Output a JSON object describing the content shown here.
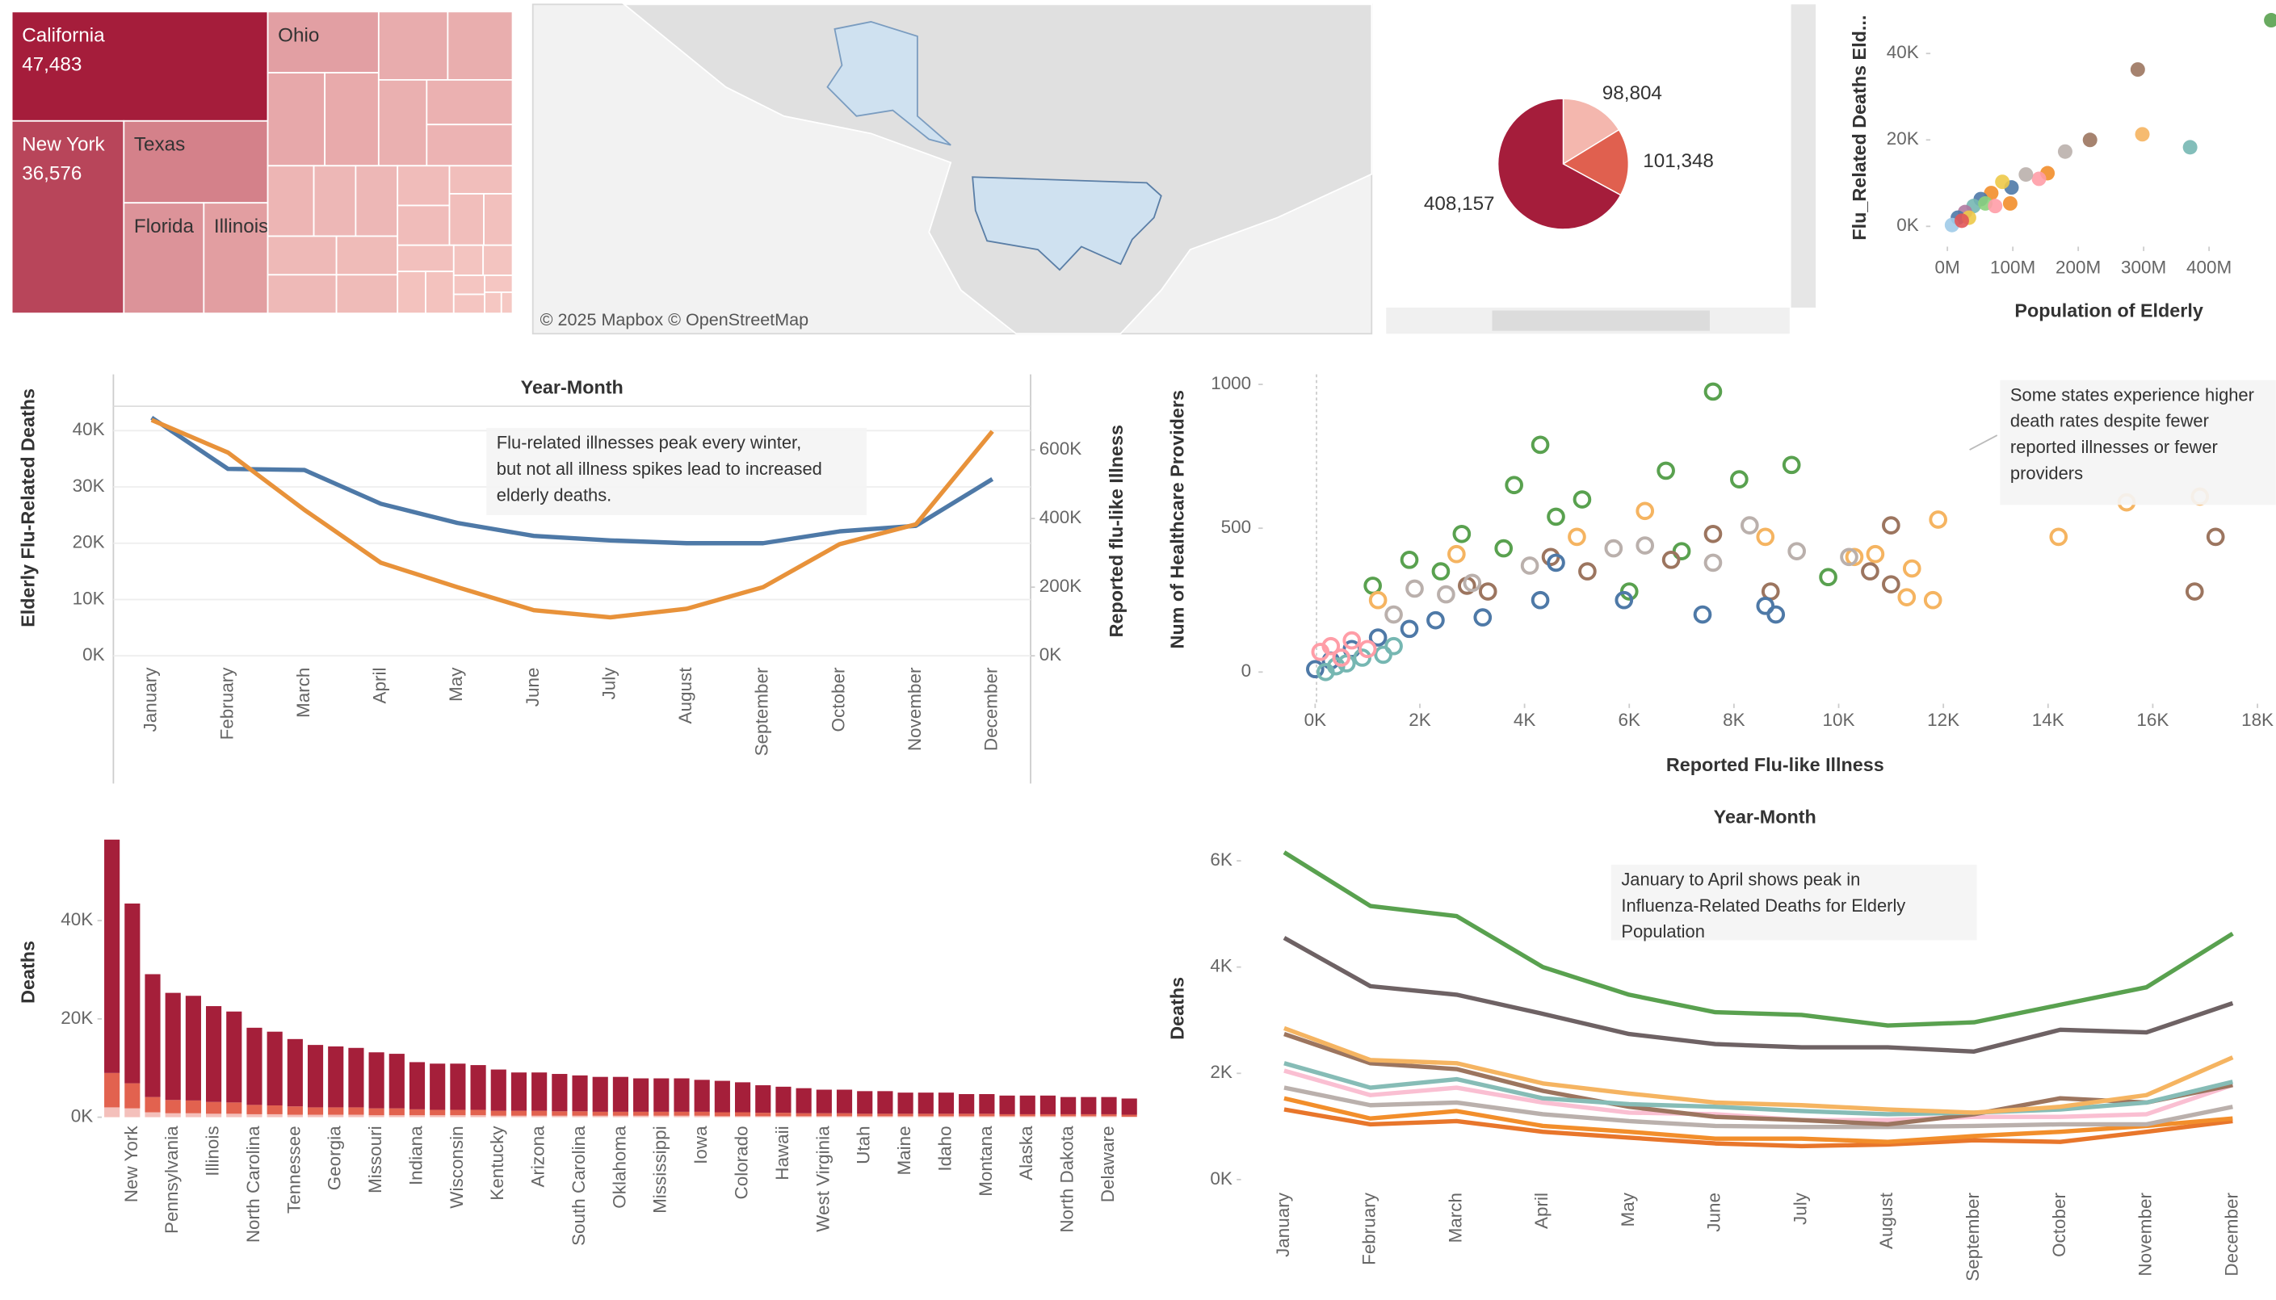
{
  "chart_data": [
    {
      "type": "treemap",
      "categories": [
        "California",
        "New York",
        "Texas",
        "Florida",
        "Illinois",
        "Ohio",
        null,
        null,
        null,
        null,
        null,
        null,
        null,
        null,
        null,
        null,
        null,
        null,
        null,
        null,
        null,
        null,
        null,
        null,
        null,
        null,
        null,
        null,
        null,
        null,
        null,
        null,
        null,
        null,
        null
      ],
      "values": [
        47483,
        36576,
        20000,
        15000,
        12000,
        11500,
        9000,
        8500,
        8000,
        7500,
        7000,
        6500,
        6000,
        5500,
        5000,
        5000,
        4500,
        4500,
        4000,
        4000,
        3500,
        3500,
        3000,
        3000,
        2500,
        2500,
        2000,
        2000,
        1500,
        1500,
        1000,
        1000,
        800,
        600,
        400
      ],
      "value_labels": [
        "47,483",
        "36,576",
        null,
        null,
        null,
        null,
        null,
        null,
        null,
        null,
        null,
        null,
        null,
        null,
        null,
        null,
        null,
        null,
        null,
        null,
        null,
        null,
        null,
        null,
        null,
        null,
        null,
        null,
        null,
        null,
        null,
        null,
        null,
        null,
        null
      ],
      "color_range": [
        "#f6c9c4",
        "#a51d3b"
      ]
    },
    {
      "type": "map",
      "attribution": "© 2025 Mapbox © OpenStreetMap"
    },
    {
      "type": "pie",
      "values": [
        98804,
        101348,
        408157
      ],
      "value_labels": [
        "98,804",
        "101,348",
        "408,157"
      ],
      "colors": [
        "#f4b7ae",
        "#e0604f",
        "#a51d3b"
      ]
    },
    {
      "type": "scatter",
      "x_label": "Population of Elderly",
      "y_label": "Flu_Related Deaths Eld...",
      "filled": true,
      "x": [
        495000000,
        291000000,
        298000000,
        371000000,
        218000000,
        180000000,
        153000000,
        140000000,
        98000000,
        84000000,
        67000000,
        51000000,
        40000000,
        27000000,
        16000000,
        7000000,
        58000000,
        73000000,
        96000000,
        33000000,
        120000000,
        22000000
      ],
      "values": [
        47700,
        36300,
        21300,
        18300,
        20000,
        17300,
        12300,
        11000,
        9000,
        10300,
        7700,
        6300,
        4700,
        3300,
        2000,
        300,
        5300,
        4700,
        5300,
        2000,
        12000,
        1300
      ],
      "colors": [
        "#59a14f",
        "#9c755f",
        "#f5b461",
        "#76b7b2",
        "#9c755f",
        "#bab0ac",
        "#f28e2b",
        "#ff9da7",
        "#4e79a7",
        "#edc948",
        "#f28e2b",
        "#4e79a7",
        "#76b7b2",
        "#b07aa1",
        "#4e79a7",
        "#a0cbe8",
        "#8cd17d",
        "#ff9da7",
        "#f28e2b",
        "#edc948",
        "#bab0ac",
        "#e15759"
      ],
      "xlim": [
        -26000000,
        502000000
      ],
      "ylim": [
        -4700,
        50700
      ],
      "xticks": [
        {
          "value": 0,
          "label": "0M"
        },
        {
          "value": 100000000,
          "label": "100M"
        },
        {
          "value": 200000000,
          "label": "200M"
        },
        {
          "value": 300000000,
          "label": "300M"
        },
        {
          "value": 400000000,
          "label": "400M"
        }
      ],
      "yticks": [
        {
          "value": 0,
          "label": "0K"
        },
        {
          "value": 20000,
          "label": "20K"
        },
        {
          "value": 40000,
          "label": "40K"
        }
      ]
    },
    {
      "type": "line",
      "title": "Year-Month",
      "y_label": "Elderly Flu-Related Deaths",
      "y2_label": "Reported flu-like Illness",
      "grid": true,
      "categories": [
        "January",
        "February",
        "March",
        "April",
        "May",
        "June",
        "July",
        "August",
        "September",
        "October",
        "November",
        "December"
      ],
      "series": [
        {
          "color": "#4e79a7",
          "values": [
            42300,
            33200,
            33000,
            27000,
            23600,
            21300,
            20500,
            20000,
            20000,
            22100,
            23100,
            31400
          ]
        },
        {
          "color": "#e8923a",
          "axis": "y2",
          "values": [
            687000,
            592000,
            425000,
            271000,
            200000,
            133000,
            112000,
            137000,
            200000,
            325000,
            383000,
            654000
          ]
        }
      ],
      "ylim": [
        0,
        50000
      ],
      "yticks": [
        {
          "value": 0,
          "label": "0K"
        },
        {
          "value": 10000,
          "label": "10K"
        },
        {
          "value": 20000,
          "label": "20K"
        },
        {
          "value": 30000,
          "label": "30K"
        },
        {
          "value": 40000,
          "label": "40K"
        }
      ],
      "y2lim": [
        0,
        820000
      ],
      "y2ticks": [
        {
          "value": 0,
          "label": "0K"
        },
        {
          "value": 200000,
          "label": "200K"
        },
        {
          "value": 400000,
          "label": "400K"
        },
        {
          "value": 600000,
          "label": "600K"
        }
      ],
      "annotation": [
        "Flu-related illnesses peak every winter,",
        "but not all illness spikes lead to increased",
        "elderly deaths."
      ]
    },
    {
      "type": "scatter",
      "x_label": "Reported Flu-like Illness",
      "y_label": "Num of Healthcare Providers",
      "filled": false,
      "series": [
        {
          "color": "#59a14f",
          "x": [
            7600,
            4300,
            9100,
            6700,
            8100,
            3800,
            5100,
            4600,
            2800,
            3600,
            7000,
            1800,
            2400,
            9800,
            6000,
            1100
          ],
          "values": [
            975,
            790,
            720,
            700,
            670,
            650,
            600,
            540,
            480,
            430,
            420,
            390,
            350,
            330,
            280,
            300
          ]
        },
        {
          "color": "#f5b461",
          "x": [
            16900,
            15500,
            14200,
            11900,
            11400,
            11300,
            10700,
            10300,
            8600,
            6300,
            5000,
            2700,
            1200,
            11800
          ],
          "values": [
            610,
            590,
            470,
            530,
            360,
            260,
            410,
            400,
            470,
            560,
            470,
            410,
            250,
            250
          ]
        },
        {
          "color": "#9c755f",
          "x": [
            17200,
            16800,
            11000,
            11000,
            10600,
            8700,
            7600,
            5200,
            3300,
            4500,
            2900,
            6800
          ],
          "values": [
            470,
            280,
            510,
            305,
            350,
            280,
            480,
            350,
            280,
            400,
            300,
            390
          ]
        },
        {
          "color": "#bab0ac",
          "x": [
            10200,
            9200,
            8300,
            7600,
            5700,
            4100,
            3000,
            2500,
            1900,
            1500,
            6300
          ],
          "values": [
            400,
            420,
            510,
            380,
            430,
            370,
            310,
            270,
            290,
            200,
            440
          ]
        },
        {
          "color": "#4e79a7",
          "x": [
            8600,
            8800,
            7400,
            4600,
            4300,
            3200,
            2300,
            1800,
            1200,
            700,
            300,
            0,
            5900
          ],
          "values": [
            230,
            200,
            200,
            380,
            250,
            190,
            180,
            150,
            120,
            80,
            40,
            10,
            250
          ]
        },
        {
          "color": "#76b7b2",
          "x": [
            200,
            600,
            900,
            1300,
            400,
            1500
          ],
          "values": [
            0,
            30,
            50,
            60,
            20,
            90
          ]
        },
        {
          "color": "#ff9da7",
          "x": [
            100,
            300,
            700,
            1000,
            500
          ],
          "values": [
            70,
            90,
            110,
            80,
            50
          ]
        }
      ],
      "xlim": [
        -1000,
        18350
      ],
      "ylim": [
        -110,
        1035
      ],
      "xticks": [
        {
          "value": 0,
          "label": "0K"
        },
        {
          "value": 2000,
          "label": "2K"
        },
        {
          "value": 4000,
          "label": "4K"
        },
        {
          "value": 6000,
          "label": "6K"
        },
        {
          "value": 8000,
          "label": "8K"
        },
        {
          "value": 10000,
          "label": "10K"
        },
        {
          "value": 12000,
          "label": "12K"
        },
        {
          "value": 14000,
          "label": "14K"
        },
        {
          "value": 16000,
          "label": "16K"
        },
        {
          "value": 18000,
          "label": "18K"
        }
      ],
      "yticks": [
        0,
        500,
        1000
      ],
      "annotation": [
        "Some states experience higher",
        "death rates despite fewer",
        "reported illnesses or fewer",
        "providers"
      ]
    },
    {
      "type": "stacked_bar",
      "y_label": "Deaths",
      "categories": [
        null,
        "New York",
        null,
        "Pennsylvania",
        null,
        "Illinois",
        null,
        "North Carolina",
        null,
        "Tennessee",
        null,
        "Georgia",
        null,
        "Missouri",
        null,
        "Indiana",
        null,
        "Wisconsin",
        null,
        "Kentucky",
        null,
        "Arizona",
        null,
        "South Carolina",
        null,
        "Oklahoma",
        null,
        "Mississippi",
        null,
        "Iowa",
        null,
        "Colorado",
        null,
        "Hawaii",
        null,
        "West Virginia",
        null,
        "Utah",
        null,
        "Maine",
        null,
        "Idaho",
        null,
        "Montana",
        null,
        "Alaska",
        null,
        "North Dakota",
        null,
        "Delaware",
        null
      ],
      "series": [
        {
          "color": "#f4c0bb",
          "values": [
            2000,
            1800,
            1000,
            800,
            800,
            700,
            700,
            600,
            600,
            500,
            500,
            500,
            500,
            400,
            400,
            400,
            400,
            400,
            400,
            300,
            300,
            300,
            300,
            300,
            300,
            300,
            300,
            300,
            300,
            300,
            200,
            200,
            200,
            200,
            200,
            200,
            200,
            200,
            200,
            200,
            200,
            200,
            200,
            200,
            200,
            200,
            200,
            200,
            200,
            200,
            100
          ]
        },
        {
          "color": "#e2624f",
          "values": [
            7000,
            5100,
            3100,
            2700,
            2600,
            2400,
            2300,
            1900,
            1800,
            1700,
            1500,
            1500,
            1500,
            1400,
            1400,
            1200,
            1100,
            1100,
            1100,
            1000,
            1000,
            1000,
            900,
            900,
            800,
            800,
            800,
            800,
            800,
            800,
            800,
            800,
            700,
            700,
            600,
            600,
            600,
            500,
            500,
            500,
            500,
            500,
            500,
            500,
            400,
            400,
            400,
            400,
            400,
            400,
            400
          ]
        },
        {
          "color": "#a51f3a",
          "values": [
            47483,
            36576,
            25000,
            21800,
            21300,
            19500,
            18500,
            15700,
            15000,
            13700,
            12700,
            12400,
            12100,
            11400,
            11100,
            9600,
            9400,
            9400,
            9100,
            8400,
            7800,
            7800,
            7600,
            7300,
            7100,
            7100,
            6800,
            6800,
            6800,
            6500,
            6400,
            6100,
            5600,
            5300,
            5100,
            4800,
            4800,
            4600,
            4600,
            4300,
            4300,
            4300,
            4000,
            4000,
            3800,
            3800,
            3800,
            3500,
            3500,
            3500,
            3300
          ]
        }
      ],
      "ylim": [
        0,
        62000
      ],
      "yticks": [
        {
          "value": 0,
          "label": "0K"
        },
        {
          "value": 20000,
          "label": "20K"
        },
        {
          "value": 40000,
          "label": "40K"
        }
      ]
    },
    {
      "type": "line",
      "title": "Year-Month",
      "y_label": "Deaths",
      "grid": false,
      "categories": [
        "January",
        "February",
        "March",
        "April",
        "May",
        "June",
        "July",
        "August",
        "September",
        "October",
        "November",
        "December"
      ],
      "series": [
        {
          "color": "#e8762b",
          "values": [
            1320,
            1040,
            1100,
            900,
            790,
            680,
            630,
            660,
            740,
            710,
            900,
            1100
          ]
        },
        {
          "color": "#f28e2b",
          "values": [
            1530,
            1150,
            1290,
            1010,
            900,
            770,
            770,
            710,
            820,
            900,
            1010,
            1150
          ]
        },
        {
          "color": "#bab0ac",
          "values": [
            1730,
            1400,
            1450,
            1230,
            1100,
            1010,
            990,
            990,
            1010,
            1040,
            1040,
            1370
          ]
        },
        {
          "color": "#fabfd2",
          "values": [
            2050,
            1590,
            1730,
            1450,
            1260,
            1230,
            1120,
            1120,
            1180,
            1180,
            1230,
            1780
          ]
        },
        {
          "color": "#9c755f",
          "values": [
            2740,
            2190,
            2080,
            1670,
            1370,
            1180,
            1120,
            1040,
            1230,
            1530,
            1450,
            1780
          ]
        },
        {
          "color": "#86bcb6",
          "values": [
            2190,
            1730,
            1890,
            1530,
            1420,
            1370,
            1290,
            1230,
            1260,
            1320,
            1450,
            1840
          ]
        },
        {
          "color": "#f5b461",
          "values": [
            2850,
            2250,
            2190,
            1810,
            1620,
            1450,
            1400,
            1320,
            1260,
            1370,
            1590,
            2300
          ]
        },
        {
          "color": "#6e6264",
          "values": [
            4550,
            3640,
            3480,
            3120,
            2740,
            2550,
            2490,
            2490,
            2410,
            2820,
            2770,
            3320
          ]
        },
        {
          "color": "#59a14f",
          "values": [
            6160,
            5150,
            4960,
            4000,
            3480,
            3150,
            3100,
            2900,
            2960,
            3290,
            3620,
            4630
          ]
        }
      ],
      "ylim": [
        0,
        6500
      ],
      "yticks": [
        {
          "value": 0,
          "label": "0K"
        },
        {
          "value": 2000,
          "label": "2K"
        },
        {
          "value": 4000,
          "label": "4K"
        },
        {
          "value": 6000,
          "label": "6K"
        }
      ],
      "annotation": [
        "January to April shows peak in",
        "Influenza-Related Deaths for Elderly",
        "Population"
      ]
    }
  ]
}
